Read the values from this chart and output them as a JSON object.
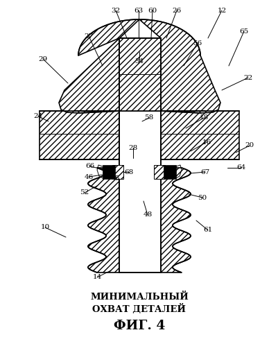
{
  "title_line1": "МИНИМАЛЬНЫЙ",
  "title_line2": "ОХВАТ ДЕТАЛЕЙ",
  "fig_label": "ФИГ. 4",
  "bg_color": "#ffffff",
  "fig_width": 4.02,
  "fig_height": 4.99,
  "dpi": 100
}
